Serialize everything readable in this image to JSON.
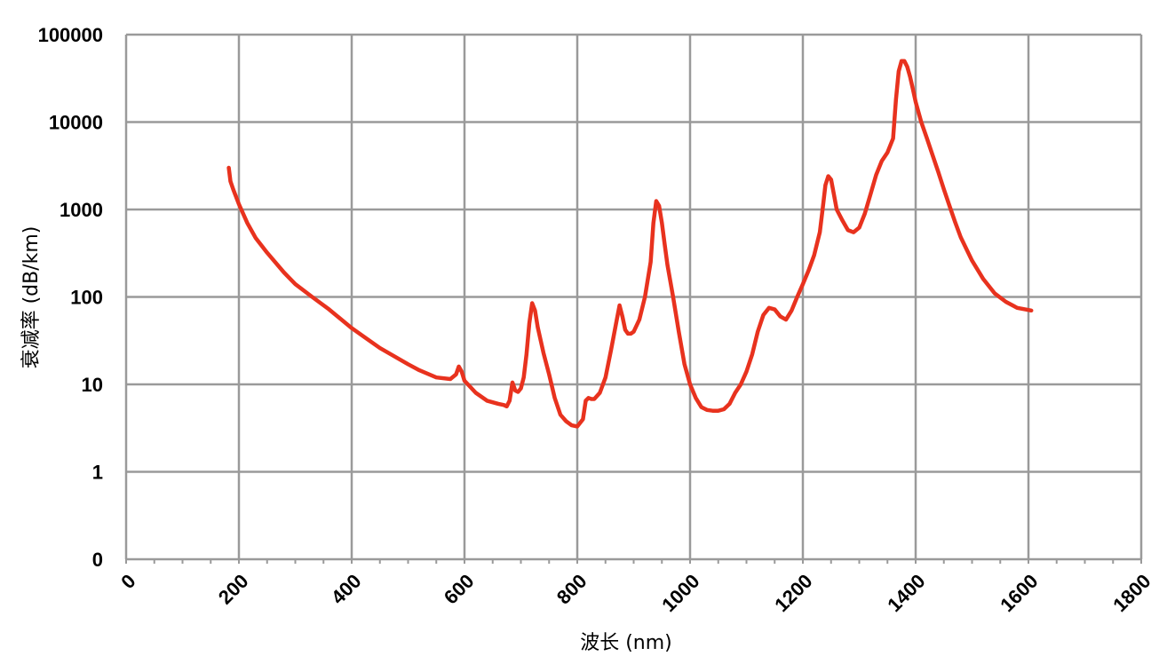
{
  "chart_data": {
    "type": "line",
    "xlabel": "波长  (nm)",
    "ylabel": "衰减率 (dB/km)",
    "xlim": [
      0,
      1800
    ],
    "x_ticks": [
      "0",
      "200",
      "400",
      "600",
      "800",
      "1000",
      "1200",
      "1400",
      "1600",
      "1800"
    ],
    "y_ticks": [
      "0",
      "1",
      "10",
      "100",
      "1000",
      "10000",
      "100000"
    ],
    "y_scale": "log",
    "grid": true,
    "line_color": "#e8321e",
    "series": [
      {
        "x": [
          182,
          185,
          190,
          200,
          215,
          230,
          250,
          280,
          300,
          330,
          360,
          400,
          450,
          500,
          520,
          550,
          575,
          585,
          590,
          595,
          600,
          620,
          640,
          660,
          670,
          675,
          680,
          685,
          690,
          695,
          700,
          705,
          710,
          715,
          720,
          725,
          730,
          740,
          750,
          760,
          770,
          780,
          790,
          800,
          810,
          815,
          820,
          825,
          830,
          840,
          850,
          860,
          870,
          875,
          880,
          885,
          890,
          895,
          900,
          910,
          920,
          930,
          935,
          940,
          945,
          950,
          955,
          960,
          970,
          980,
          990,
          1000,
          1010,
          1020,
          1030,
          1040,
          1050,
          1060,
          1070,
          1080,
          1090,
          1100,
          1110,
          1120,
          1130,
          1140,
          1150,
          1160,
          1170,
          1180,
          1190,
          1200,
          1210,
          1220,
          1230,
          1235,
          1240,
          1245,
          1250,
          1255,
          1260,
          1270,
          1280,
          1290,
          1300,
          1310,
          1320,
          1330,
          1340,
          1350,
          1360,
          1365,
          1370,
          1375,
          1380,
          1385,
          1390,
          1395,
          1400,
          1410,
          1420,
          1430,
          1440,
          1450,
          1460,
          1470,
          1480,
          1500,
          1520,
          1540,
          1560,
          1580,
          1600,
          1605
        ],
        "y": [
          3000,
          2100,
          1700,
          1150,
          700,
          470,
          320,
          190,
          140,
          100,
          72,
          44,
          26,
          17,
          14.5,
          12,
          11.5,
          13,
          16,
          14,
          11,
          8,
          6.5,
          6,
          5.8,
          5.6,
          6.5,
          10.5,
          8.5,
          8.2,
          9,
          12,
          22,
          50,
          85,
          70,
          45,
          23,
          13,
          7,
          4.5,
          3.8,
          3.4,
          3.3,
          4,
          6.5,
          7,
          6.8,
          6.8,
          8,
          12,
          25,
          55,
          80,
          60,
          42,
          38,
          38,
          40,
          55,
          100,
          250,
          700,
          1250,
          1100,
          700,
          400,
          230,
          100,
          40,
          17,
          10,
          7,
          5.5,
          5.1,
          5.0,
          5.0,
          5.2,
          6,
          8,
          10,
          14,
          22,
          40,
          62,
          75,
          72,
          60,
          55,
          70,
          100,
          140,
          200,
          300,
          550,
          1000,
          1900,
          2400,
          2200,
          1500,
          1000,
          750,
          580,
          550,
          620,
          900,
          1500,
          2500,
          3600,
          4500,
          6500,
          18000,
          38000,
          50000,
          50000,
          43000,
          33000,
          24000,
          17000,
          10000,
          6500,
          4200,
          2700,
          1700,
          1100,
          720,
          480,
          260,
          160,
          110,
          88,
          75,
          71,
          70
        ]
      }
    ]
  }
}
